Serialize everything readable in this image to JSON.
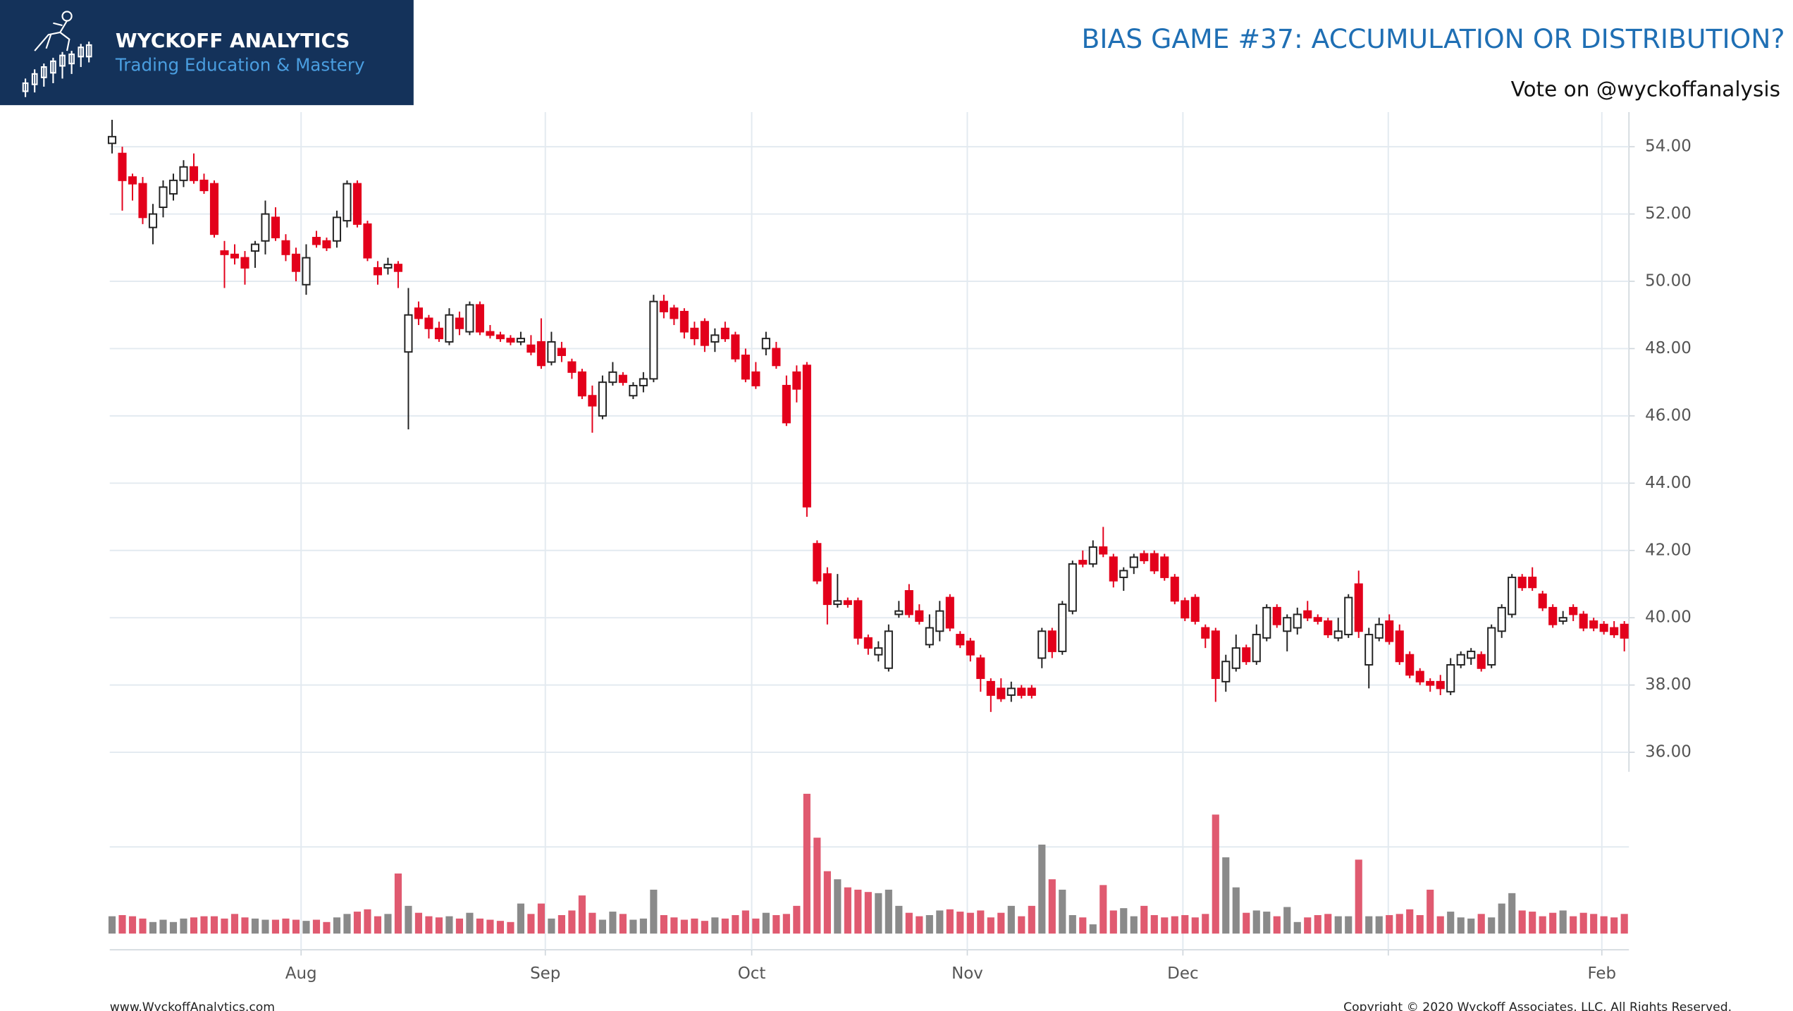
{
  "header": {
    "brand": "WYCKOFF ANALYTICS",
    "tagline": "Trading Education & Mastery"
  },
  "footer": {
    "website": "www.WyckoffAnalytics.com",
    "copyright": "Copyright © 2020 Wyckoff Associates, LLC. All Rights Reserved."
  },
  "chart_data": {
    "type": "candlestick",
    "title": "BIAS GAME #37: ACCUMULATION OR DISTRIBUTION?",
    "subtitle": "Vote on @wyckoffanalysis",
    "up_color": "#ffffff",
    "down_color": "#e3001b",
    "outline_color": "#222222",
    "volume_up_color": "#8a8a8a",
    "volume_down_color": "#e05a70",
    "grid": true,
    "ylim": [
      35.42,
      55.03
    ],
    "yticks": [
      {
        "value": 36,
        "label": "36.00"
      },
      {
        "value": 38,
        "label": "38.00"
      },
      {
        "value": 40,
        "label": "40.00"
      },
      {
        "value": 42,
        "label": "42.00"
      },
      {
        "value": 44,
        "label": "44.00"
      },
      {
        "value": 46,
        "label": "46.00"
      },
      {
        "value": 48,
        "label": "48.00"
      },
      {
        "value": 50,
        "label": "50.00"
      },
      {
        "value": 52,
        "label": "52.00"
      },
      {
        "value": 54,
        "label": "54.00"
      }
    ],
    "xlim": [
      0,
      148
    ],
    "xticks": [
      {
        "value": 18.5,
        "label": "Aug"
      },
      {
        "value": 42.4,
        "label": "Sep"
      },
      {
        "value": 62.6,
        "label": "Oct"
      },
      {
        "value": 83.7,
        "label": "Nov"
      },
      {
        "value": 104.8,
        "label": "Dec"
      },
      {
        "value": 124.9,
        "label": null
      },
      {
        "value": 145.8,
        "label": "Feb"
      }
    ],
    "volume_ylim": [
      0,
      136
    ],
    "volume_yticks": [
      75
    ],
    "ohlc": [
      [
        54.1,
        54.8,
        53.8,
        54.3
      ],
      [
        53.8,
        54.0,
        52.1,
        53.0
      ],
      [
        53.1,
        53.2,
        52.4,
        52.9
      ],
      [
        52.9,
        53.1,
        51.7,
        51.9
      ],
      [
        51.6,
        52.3,
        51.1,
        52.0
      ],
      [
        52.2,
        53.0,
        51.9,
        52.8
      ],
      [
        52.6,
        53.2,
        52.4,
        53.0
      ],
      [
        53.0,
        53.6,
        52.8,
        53.4
      ],
      [
        53.4,
        53.8,
        52.9,
        53.0
      ],
      [
        53.0,
        53.2,
        52.6,
        52.7
      ],
      [
        52.9,
        53.0,
        51.3,
        51.4
      ],
      [
        50.9,
        51.2,
        49.8,
        50.8
      ],
      [
        50.8,
        51.1,
        50.5,
        50.7
      ],
      [
        50.7,
        50.9,
        49.9,
        50.4
      ],
      [
        50.9,
        51.2,
        50.4,
        51.1
      ],
      [
        51.2,
        52.4,
        50.8,
        52.0
      ],
      [
        51.9,
        52.2,
        51.2,
        51.3
      ],
      [
        51.2,
        51.4,
        50.6,
        50.8
      ],
      [
        50.8,
        51.0,
        50.0,
        50.3
      ],
      [
        49.9,
        51.1,
        49.6,
        50.7
      ],
      [
        51.3,
        51.5,
        51.0,
        51.1
      ],
      [
        51.2,
        51.3,
        50.9,
        51.0
      ],
      [
        51.2,
        52.1,
        51.0,
        51.9
      ],
      [
        51.8,
        53.0,
        51.6,
        52.9
      ],
      [
        52.9,
        53.0,
        51.6,
        51.7
      ],
      [
        51.7,
        51.8,
        50.6,
        50.7
      ],
      [
        50.4,
        50.6,
        49.9,
        50.2
      ],
      [
        50.4,
        50.7,
        50.2,
        50.5
      ],
      [
        50.5,
        50.6,
        49.8,
        50.3
      ],
      [
        47.9,
        49.8,
        45.6,
        49.0
      ],
      [
        49.2,
        49.4,
        48.7,
        48.9
      ],
      [
        48.9,
        49.0,
        48.3,
        48.6
      ],
      [
        48.6,
        48.8,
        48.2,
        48.3
      ],
      [
        48.2,
        49.2,
        48.1,
        49.0
      ],
      [
        48.9,
        49.1,
        48.4,
        48.6
      ],
      [
        48.5,
        49.4,
        48.4,
        49.3
      ],
      [
        49.3,
        49.4,
        48.4,
        48.5
      ],
      [
        48.5,
        48.7,
        48.3,
        48.4
      ],
      [
        48.4,
        48.5,
        48.2,
        48.3
      ],
      [
        48.3,
        48.4,
        48.1,
        48.2
      ],
      [
        48.2,
        48.5,
        48.1,
        48.3
      ],
      [
        48.1,
        48.4,
        47.8,
        47.9
      ],
      [
        48.2,
        48.9,
        47.4,
        47.5
      ],
      [
        47.6,
        48.5,
        47.5,
        48.2
      ],
      [
        48.0,
        48.2,
        47.6,
        47.8
      ],
      [
        47.6,
        47.7,
        47.1,
        47.3
      ],
      [
        47.3,
        47.4,
        46.5,
        46.6
      ],
      [
        46.6,
        46.9,
        45.5,
        46.3
      ],
      [
        46.0,
        47.2,
        45.9,
        47.0
      ],
      [
        47.0,
        47.6,
        46.9,
        47.3
      ],
      [
        47.2,
        47.3,
        46.9,
        47.0
      ],
      [
        46.6,
        47.0,
        46.5,
        46.9
      ],
      [
        46.9,
        47.3,
        46.7,
        47.1
      ],
      [
        47.1,
        49.6,
        47.0,
        49.4
      ],
      [
        49.4,
        49.6,
        48.9,
        49.1
      ],
      [
        49.2,
        49.3,
        48.7,
        48.9
      ],
      [
        49.1,
        49.2,
        48.3,
        48.5
      ],
      [
        48.6,
        48.8,
        48.1,
        48.3
      ],
      [
        48.8,
        48.9,
        47.9,
        48.1
      ],
      [
        48.2,
        48.6,
        47.9,
        48.4
      ],
      [
        48.6,
        48.8,
        48.2,
        48.3
      ],
      [
        48.4,
        48.5,
        47.6,
        47.7
      ],
      [
        47.8,
        48.0,
        47.0,
        47.1
      ],
      [
        47.3,
        47.6,
        46.8,
        46.9
      ],
      [
        48.0,
        48.5,
        47.8,
        48.3
      ],
      [
        48.0,
        48.2,
        47.4,
        47.5
      ],
      [
        46.9,
        47.2,
        45.7,
        45.8
      ],
      [
        47.3,
        47.5,
        46.4,
        46.8
      ],
      [
        47.5,
        47.6,
        43.0,
        43.3
      ],
      [
        42.2,
        42.3,
        41.0,
        41.1
      ],
      [
        41.3,
        41.5,
        39.8,
        40.4
      ],
      [
        40.4,
        41.3,
        40.3,
        40.5
      ],
      [
        40.5,
        40.6,
        40.3,
        40.4
      ],
      [
        40.5,
        40.6,
        39.2,
        39.4
      ],
      [
        39.4,
        39.5,
        38.9,
        39.1
      ],
      [
        38.9,
        39.3,
        38.7,
        39.1
      ],
      [
        38.5,
        39.8,
        38.4,
        39.6
      ],
      [
        40.1,
        40.5,
        40.0,
        40.2
      ],
      [
        40.8,
        41.0,
        40.0,
        40.1
      ],
      [
        40.2,
        40.4,
        39.8,
        39.9
      ],
      [
        39.2,
        40.1,
        39.1,
        39.7
      ],
      [
        39.6,
        40.5,
        39.3,
        40.2
      ],
      [
        40.6,
        40.7,
        39.6,
        39.7
      ],
      [
        39.5,
        39.6,
        39.1,
        39.2
      ],
      [
        39.3,
        39.4,
        38.7,
        38.9
      ],
      [
        38.8,
        38.9,
        37.8,
        38.2
      ],
      [
        38.1,
        38.2,
        37.2,
        37.7
      ],
      [
        37.9,
        38.2,
        37.5,
        37.6
      ],
      [
        37.7,
        38.1,
        37.5,
        37.9
      ],
      [
        37.9,
        38.0,
        37.6,
        37.7
      ],
      [
        37.9,
        38.0,
        37.6,
        37.7
      ],
      [
        38.8,
        39.7,
        38.5,
        39.6
      ],
      [
        39.6,
        39.7,
        38.8,
        39.0
      ],
      [
        39.0,
        40.5,
        38.9,
        40.4
      ],
      [
        40.2,
        41.7,
        40.1,
        41.6
      ],
      [
        41.7,
        42.0,
        41.5,
        41.6
      ],
      [
        41.6,
        42.3,
        41.5,
        42.1
      ],
      [
        42.1,
        42.7,
        41.8,
        41.9
      ],
      [
        41.8,
        41.9,
        40.9,
        41.1
      ],
      [
        41.2,
        41.5,
        40.8,
        41.4
      ],
      [
        41.5,
        41.9,
        41.3,
        41.8
      ],
      [
        41.9,
        42.0,
        41.6,
        41.7
      ],
      [
        41.9,
        42.0,
        41.3,
        41.4
      ],
      [
        41.8,
        41.9,
        41.1,
        41.2
      ],
      [
        41.2,
        41.3,
        40.4,
        40.5
      ],
      [
        40.5,
        40.6,
        39.9,
        40.0
      ],
      [
        40.6,
        40.7,
        39.8,
        39.9
      ],
      [
        39.7,
        39.8,
        39.1,
        39.4
      ],
      [
        39.6,
        39.7,
        37.5,
        38.2
      ],
      [
        38.1,
        38.9,
        37.8,
        38.7
      ],
      [
        38.5,
        39.5,
        38.4,
        39.1
      ],
      [
        39.1,
        39.2,
        38.6,
        38.7
      ],
      [
        38.7,
        39.8,
        38.6,
        39.5
      ],
      [
        39.4,
        40.4,
        39.3,
        40.3
      ],
      [
        40.3,
        40.4,
        39.7,
        39.8
      ],
      [
        39.6,
        40.1,
        39.0,
        40.0
      ],
      [
        39.7,
        40.3,
        39.5,
        40.1
      ],
      [
        40.2,
        40.5,
        39.9,
        40.0
      ],
      [
        40.0,
        40.1,
        39.8,
        39.9
      ],
      [
        39.9,
        40.0,
        39.4,
        39.5
      ],
      [
        39.4,
        40.0,
        39.3,
        39.6
      ],
      [
        39.5,
        40.7,
        39.4,
        40.6
      ],
      [
        41.0,
        41.4,
        39.4,
        39.6
      ],
      [
        38.6,
        39.7,
        37.9,
        39.5
      ],
      [
        39.4,
        40.0,
        39.3,
        39.8
      ],
      [
        39.9,
        40.1,
        39.2,
        39.3
      ],
      [
        39.6,
        39.8,
        38.6,
        38.7
      ],
      [
        38.9,
        39.0,
        38.2,
        38.3
      ],
      [
        38.4,
        38.5,
        38.0,
        38.1
      ],
      [
        38.1,
        38.2,
        37.8,
        38.0
      ],
      [
        38.1,
        38.3,
        37.7,
        37.9
      ],
      [
        37.8,
        38.8,
        37.7,
        38.6
      ],
      [
        38.6,
        39.0,
        38.5,
        38.9
      ],
      [
        38.8,
        39.1,
        38.6,
        39.0
      ],
      [
        38.9,
        39.0,
        38.4,
        38.5
      ],
      [
        38.6,
        39.8,
        38.5,
        39.7
      ],
      [
        39.6,
        40.4,
        39.4,
        40.3
      ],
      [
        40.1,
        41.3,
        40.0,
        41.2
      ],
      [
        41.2,
        41.3,
        40.8,
        40.9
      ],
      [
        41.2,
        41.5,
        40.8,
        40.9
      ],
      [
        40.7,
        40.8,
        40.2,
        40.3
      ],
      [
        40.3,
        40.4,
        39.7,
        39.8
      ],
      [
        39.9,
        40.2,
        39.8,
        40.0
      ],
      [
        40.3,
        40.4,
        39.9,
        40.1
      ],
      [
        40.1,
        40.2,
        39.6,
        39.7
      ],
      [
        39.9,
        40.0,
        39.6,
        39.7
      ],
      [
        39.8,
        39.9,
        39.5,
        39.6
      ],
      [
        39.7,
        39.9,
        39.4,
        39.5
      ],
      [
        39.8,
        39.9,
        39.0,
        39.4
      ]
    ],
    "volume": [
      15,
      16,
      15,
      13,
      10,
      12,
      10,
      13,
      14,
      15,
      15,
      13,
      17,
      14,
      13,
      12,
      12,
      13,
      12,
      11,
      12,
      10,
      14,
      17,
      19,
      21,
      15,
      17,
      52,
      24,
      18,
      15,
      14,
      15,
      13,
      18,
      13,
      12,
      11,
      10,
      26,
      17,
      26,
      13,
      16,
      20,
      33,
      18,
      12,
      19,
      17,
      12,
      13,
      38,
      16,
      14,
      12,
      13,
      11,
      14,
      13,
      16,
      20,
      13,
      18,
      16,
      17,
      24,
      121,
      83,
      54,
      47,
      40,
      38,
      36,
      35,
      38,
      24,
      18,
      15,
      16,
      20,
      21,
      19,
      18,
      20,
      14,
      18,
      24,
      15,
      24,
      77,
      47,
      38,
      16,
      14,
      8,
      42,
      20,
      22,
      15,
      24,
      16,
      14,
      15,
      16,
      14,
      17,
      103,
      66,
      40,
      18,
      20,
      19,
      15,
      23,
      10,
      14,
      16,
      17,
      15,
      15,
      64,
      15,
      15,
      16,
      17,
      21,
      16,
      38,
      15,
      19,
      14,
      13,
      17,
      14,
      26,
      35,
      20,
      19,
      15,
      18,
      20,
      15,
      18,
      17,
      15,
      14,
      17
    ]
  }
}
